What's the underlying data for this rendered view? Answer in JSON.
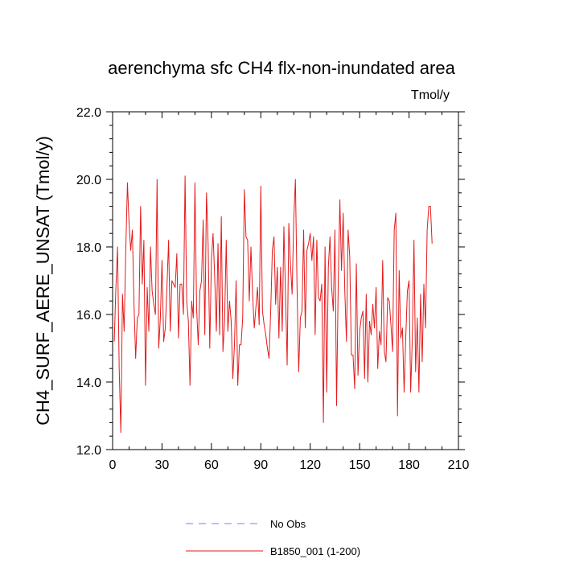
{
  "chart_data": {
    "type": "line",
    "title": "aerenchyma sfc CH4 flx-non-inundated area",
    "units": "Tmol/y",
    "xlabel": "",
    "ylabel": "CH4_SURF_AERE_UNSAT  (Tmol/y)",
    "xlim": [
      0,
      210
    ],
    "ylim": [
      12.0,
      22.0
    ],
    "xticks": [
      0,
      30,
      60,
      90,
      120,
      150,
      180,
      210
    ],
    "yticks": [
      12.0,
      14.0,
      16.0,
      18.0,
      20.0,
      22.0
    ],
    "xtick_labels": [
      "0",
      "30",
      "60",
      "90",
      "120",
      "150",
      "180",
      "210"
    ],
    "ytick_labels": [
      "12.0",
      "14.0",
      "16.0",
      "18.0",
      "20.0",
      "22.0"
    ],
    "grid": false,
    "legend_position": "bottom-center",
    "series": [
      {
        "name": "No Obs",
        "color": "#7b7bff",
        "dash": "dashed",
        "values": []
      },
      {
        "name": "B1850_001 (1-200)",
        "color": "#e41a1c",
        "dash": "solid",
        "x_start": 1,
        "values": [
          15.2,
          16.8,
          18.0,
          14.4,
          12.5,
          16.6,
          15.5,
          17.9,
          19.9,
          18.7,
          17.9,
          18.5,
          16.3,
          14.7,
          15.9,
          16.0,
          19.2,
          16.9,
          18.2,
          13.9,
          16.8,
          15.5,
          18.0,
          16.7,
          16.3,
          16.0,
          20.0,
          15.0,
          15.9,
          17.6,
          15.2,
          15.6,
          16.8,
          18.2,
          15.5,
          17.0,
          16.9,
          16.8,
          17.8,
          15.3,
          16.9,
          16.9,
          16.0,
          20.1,
          16.4,
          15.8,
          13.9,
          16.4,
          15.9,
          19.9,
          16.2,
          15.1,
          16.7,
          17.0,
          18.8,
          15.4,
          19.6,
          18.1,
          15.0,
          17.6,
          18.4,
          17.1,
          15.5,
          18.1,
          15.4,
          18.9,
          14.9,
          15.8,
          18.2,
          15.5,
          16.4,
          15.8,
          14.1,
          15.1,
          17.0,
          13.9,
          15.1,
          15.1,
          15.9,
          19.7,
          18.3,
          18.2,
          16.4,
          18.0,
          16.6,
          15.6,
          16.2,
          16.8,
          15.7,
          19.8,
          16.1,
          15.7,
          15.4,
          15.0,
          14.7,
          16.1,
          17.9,
          18.3,
          16.3,
          17.4,
          15.3,
          17.4,
          15.5,
          18.6,
          16.6,
          14.5,
          18.7,
          17.5,
          16.6,
          18.8,
          20.0,
          16.8,
          14.3,
          15.9,
          16.1,
          18.5,
          15.6,
          17.9,
          18.1,
          18.4,
          17.6,
          18.3,
          15.4,
          18.2,
          16.5,
          16.4,
          16.9,
          12.8,
          18.0,
          13.7,
          17.4,
          18.3,
          16.8,
          16.1,
          18.5,
          13.3,
          16.9,
          19.4,
          17.3,
          19.0,
          16.7,
          15.2,
          18.5,
          17.7,
          14.8,
          14.8,
          13.8,
          17.5,
          14.2,
          15.5,
          15.9,
          16.1,
          14.1,
          16.6,
          14.0,
          15.8,
          15.4,
          16.3,
          15.6,
          16.8,
          14.4,
          15.5,
          15.1,
          17.6,
          14.9,
          14.6,
          16.5,
          16.4,
          15.7,
          14.9,
          18.5,
          19.0,
          13.0,
          17.3,
          15.3,
          15.6,
          13.7,
          15.3,
          16.7,
          17.0,
          13.7,
          15.3,
          18.2,
          14.3,
          15.9,
          13.7,
          16.6,
          14.6,
          16.9,
          15.6,
          18.5,
          19.2,
          19.2,
          18.1
        ]
      }
    ]
  }
}
